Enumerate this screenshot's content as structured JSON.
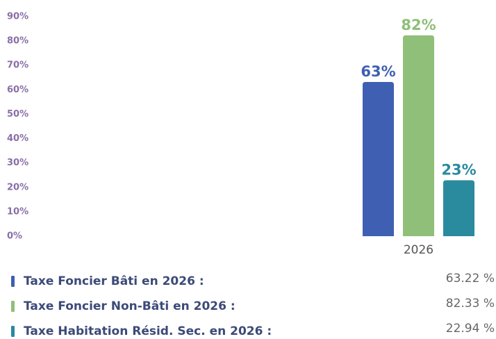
{
  "chart_data": {
    "type": "bar",
    "categories": [
      "2026"
    ],
    "series": [
      {
        "name": "Taxe Foncier Bâti en 2026 :",
        "color": "#3f5fb2",
        "values": [
          63.22
        ],
        "value_labels": [
          "63%"
        ],
        "legend_value": "63.22 %"
      },
      {
        "name": "Taxe Foncier Non-Bâti en 2026 :",
        "color": "#8fbf78",
        "values": [
          82.33
        ],
        "value_labels": [
          "82%"
        ],
        "legend_value": "82.33 %"
      },
      {
        "name": "Taxe Habitation Résid. Sec. en 2026 :",
        "color": "#2a8a9e",
        "values": [
          22.94
        ],
        "value_labels": [
          "23%"
        ],
        "legend_value": "22.94 %"
      }
    ],
    "ylim": [
      0,
      90
    ],
    "yticks": [
      {
        "value": 0,
        "label": "0%"
      },
      {
        "value": 10,
        "label": "10%"
      },
      {
        "value": 20,
        "label": "20%"
      },
      {
        "value": 30,
        "label": "30%"
      },
      {
        "value": 40,
        "label": "40%"
      },
      {
        "value": 50,
        "label": "50%"
      },
      {
        "value": 60,
        "label": "60%"
      },
      {
        "value": 70,
        "label": "70%"
      },
      {
        "value": 80,
        "label": "80%"
      },
      {
        "value": 90,
        "label": "90%"
      }
    ],
    "grid": false
  }
}
